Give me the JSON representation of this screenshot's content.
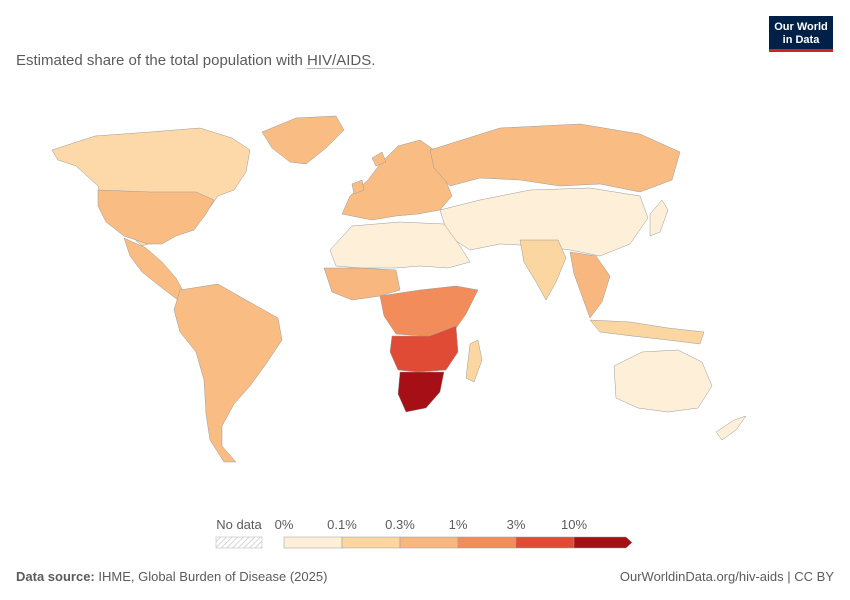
{
  "logo": {
    "line1": "Our World",
    "line2": "in Data",
    "colors": {
      "bg": "#002147",
      "accent": "#ce261e"
    }
  },
  "title": {
    "prefix": "Estimated share of the total population with ",
    "link": "HIV/AIDS",
    "suffix": "."
  },
  "legend": {
    "no_data_label": "No data",
    "bins": [
      {
        "label": "0%",
        "color": "#fdefd8"
      },
      {
        "label": "0.1%",
        "color": "#fbd6a0"
      },
      {
        "label": "0.3%",
        "color": "#f8b77e"
      },
      {
        "label": "1%",
        "color": "#f28c5a"
      },
      {
        "label": "3%",
        "color": "#df4b34"
      },
      {
        "label": "10%",
        "color": "#a50f15"
      }
    ]
  },
  "footer": {
    "source_label": "Data source:",
    "source_text": "IHME, Global Burden of Disease (2025)",
    "url": "OurWorldinData.org/hiv-aids",
    "separator": " | ",
    "license": "CC BY"
  }
}
